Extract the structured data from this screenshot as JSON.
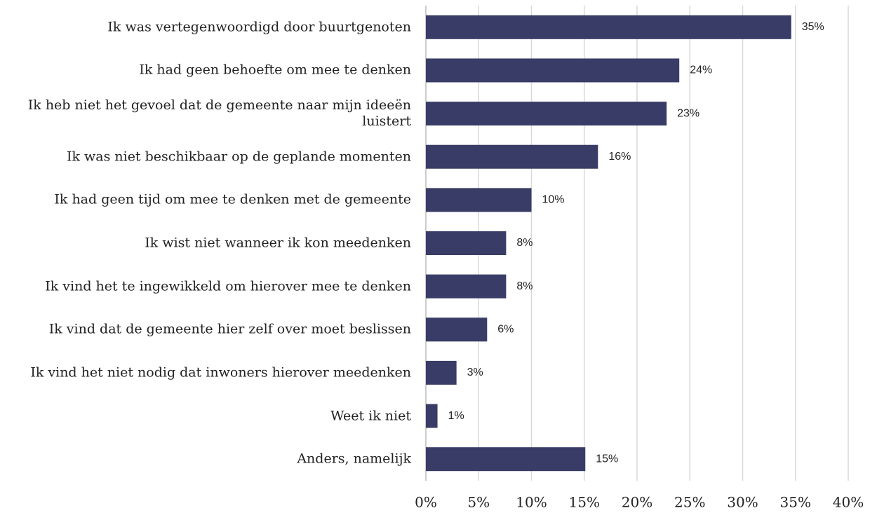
{
  "chart_data": {
    "type": "barh",
    "categories": [
      "Ik was vertegenwoordigd door buurtgenoten",
      "Ik had geen behoefte om mee te denken",
      "Ik heb niet het gevoel dat de gemeente naar mijn ideeën luistert",
      "Ik was niet beschikbaar op de geplande momenten",
      "Ik had geen tijd om mee te denken met de gemeente",
      "Ik wist niet wanneer ik kon meedenken",
      "Ik vind het te ingewikkeld om hierover mee te denken",
      "Ik vind dat de gemeente hier zelf over moet beslissen",
      "Ik vind het niet nodig dat inwoners hierover meedenken",
      "Weet ik niet",
      "Anders, namelijk"
    ],
    "values": [
      34.6,
      24.0,
      22.8,
      16.3,
      10.0,
      7.6,
      7.6,
      5.8,
      2.9,
      1.1,
      15.1
    ],
    "value_labels": [
      "35%",
      "24%",
      "23%",
      "16%",
      "10%",
      "8%",
      "8%",
      "6%",
      "3%",
      "1%",
      "15%"
    ],
    "color": "#383c66",
    "xlim": [
      0,
      40
    ],
    "xticks": [
      {
        "value": 0,
        "label": "0%"
      },
      {
        "value": 5,
        "label": "5%"
      },
      {
        "value": 10,
        "label": "10%"
      },
      {
        "value": 15,
        "label": "15%"
      },
      {
        "value": 20,
        "label": "20%"
      },
      {
        "value": 25,
        "label": "25%"
      },
      {
        "value": 30,
        "label": "30%"
      },
      {
        "value": 35,
        "label": "35%"
      },
      {
        "value": 40,
        "label": "40%"
      }
    ],
    "grid": true
  }
}
